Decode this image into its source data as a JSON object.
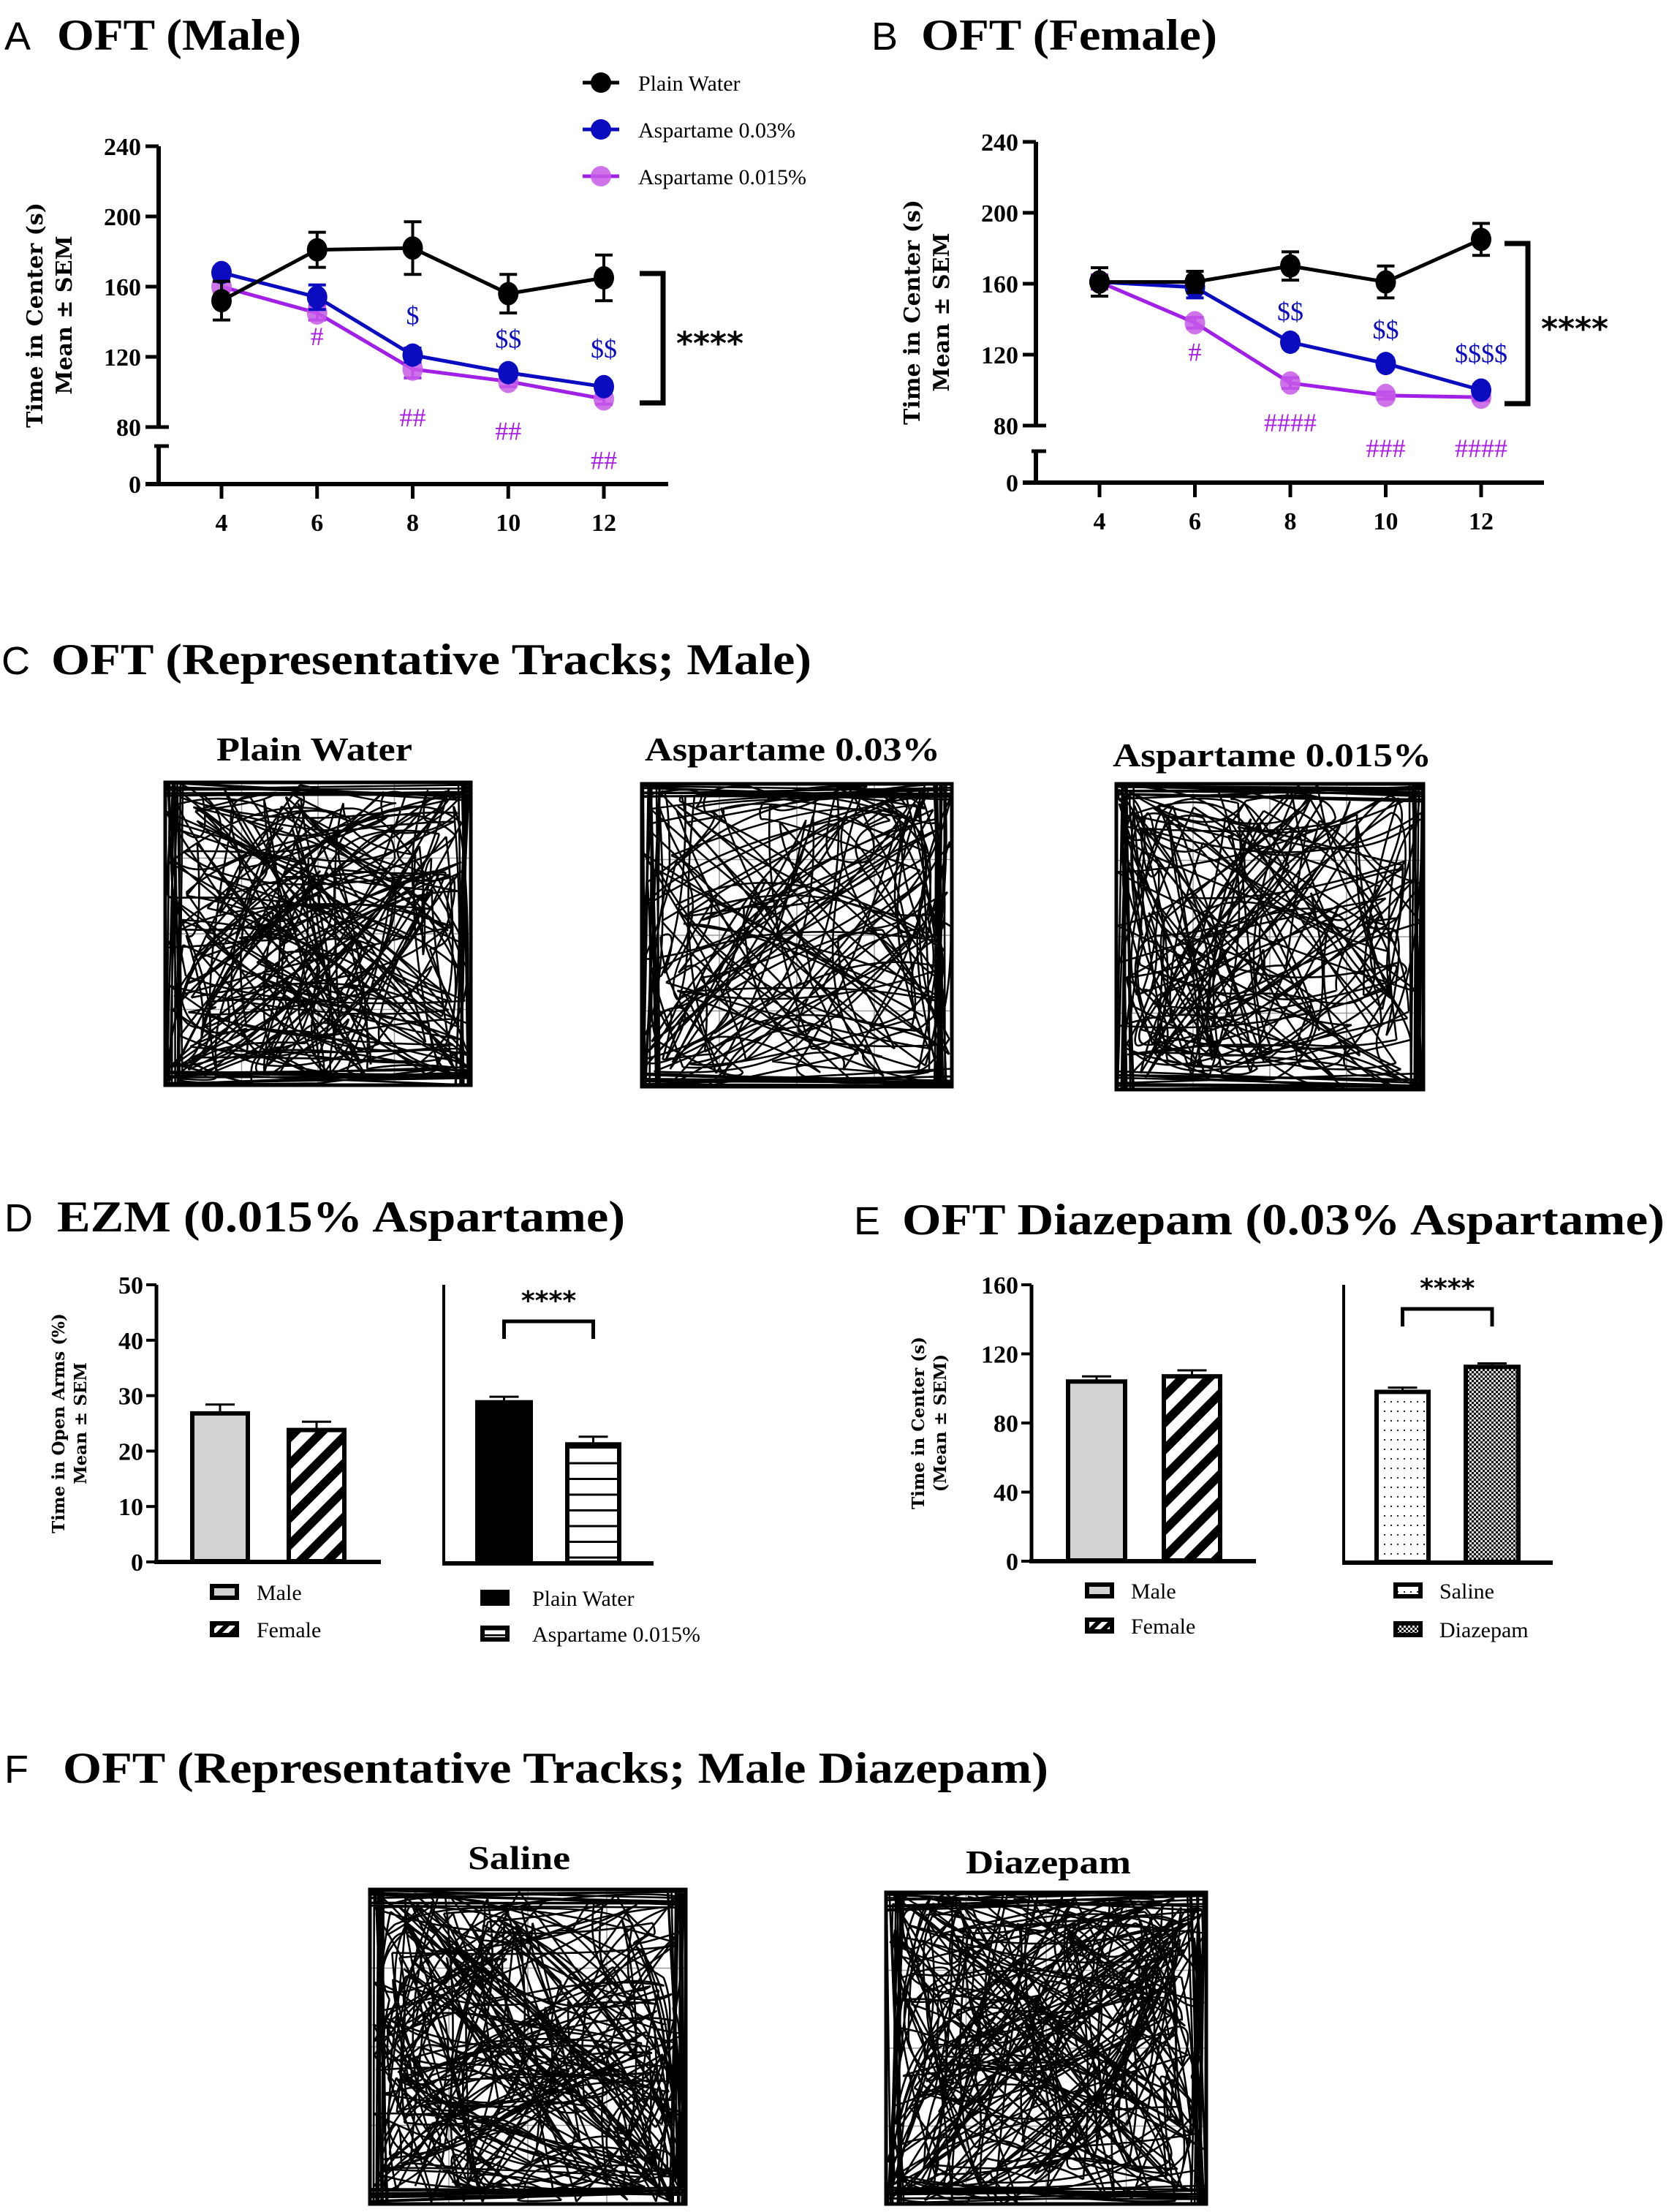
{
  "colors": {
    "plain_water": "#000000",
    "aspartame_003": "#0b0bbf",
    "aspartame_0015_line": "#a020e6",
    "aspartame_0015_marker": "#c75be8",
    "male_bar": "#d3d3d3",
    "grid": "#9a9a9a"
  },
  "panels": {
    "A": {
      "letter": "A",
      "title": "OFT (Male)"
    },
    "B": {
      "letter": "B",
      "title": "OFT (Female)"
    },
    "C": {
      "letter": "C",
      "title": "OFT (Representative Tracks; Male)",
      "tracks": [
        {
          "label": "Plain Water"
        },
        {
          "label": "Aspartame 0.03%"
        },
        {
          "label": "Aspartame 0.015%"
        }
      ]
    },
    "D": {
      "letter": "D",
      "title": "EZM (0.015% Aspartame)"
    },
    "E": {
      "letter": "E",
      "title": "OFT Diazepam (0.03% Aspartame)"
    },
    "F": {
      "letter": "F",
      "title": "OFT (Representative Tracks; Male Diazepam)",
      "tracks": [
        {
          "label": "Saline"
        },
        {
          "label": "Diazepam"
        }
      ]
    }
  },
  "legend_lines": [
    {
      "name": "Plain Water",
      "color_key": "plain_water"
    },
    {
      "name": "Aspartame 0.03%",
      "color_key": "aspartame_003"
    },
    {
      "name": "Aspartame 0.015%",
      "color_key": "aspartame_0015_line"
    }
  ],
  "chart_data": [
    {
      "id": "A",
      "type": "line",
      "title": "OFT (Male)",
      "xlabel": "",
      "ylabel": "Time in Center (s)",
      "ylabel2": "Mean ± SEM",
      "x": [
        4,
        6,
        8,
        10,
        12
      ],
      "xticks": [
        "4",
        "6",
        "8",
        "10",
        "12"
      ],
      "yticks": [
        "0",
        "80",
        "120",
        "160",
        "200",
        "240"
      ],
      "ylim": [
        0,
        240
      ],
      "axis_break": [
        0,
        80
      ],
      "series": [
        {
          "name": "Plain Water",
          "values": [
            152,
            181,
            182,
            156,
            165
          ],
          "sem": [
            11,
            10,
            15,
            11,
            13
          ]
        },
        {
          "name": "Aspartame 0.03%",
          "values": [
            168,
            154,
            121,
            111,
            103
          ],
          "sem": [
            3,
            7,
            4,
            3,
            3
          ]
        },
        {
          "name": "Aspartame 0.015%",
          "values": [
            160,
            145,
            113,
            106,
            96
          ],
          "sem": [
            3,
            4,
            5,
            3,
            3
          ]
        }
      ],
      "annotations_003": [
        "",
        "",
        "$",
        "$$",
        "$$"
      ],
      "annotations_0015": [
        "",
        "#",
        "##",
        "##",
        "##"
      ],
      "bracket_label": "****"
    },
    {
      "id": "B",
      "type": "line",
      "title": "OFT (Female)",
      "xlabel": "",
      "ylabel": "Time in Center (s)",
      "ylabel2": "Mean ± SEM",
      "x": [
        4,
        6,
        8,
        10,
        12
      ],
      "xticks": [
        "4",
        "6",
        "8",
        "10",
        "12"
      ],
      "yticks": [
        "0",
        "80",
        "120",
        "160",
        "200",
        "240"
      ],
      "ylim": [
        0,
        240
      ],
      "axis_break": [
        0,
        80
      ],
      "series": [
        {
          "name": "Plain Water",
          "values": [
            161,
            161,
            170,
            161,
            185
          ],
          "sem": [
            8,
            6,
            8,
            9,
            9
          ]
        },
        {
          "name": "Aspartame 0.03%",
          "values": [
            161,
            158,
            127,
            115,
            100
          ],
          "sem": [
            3,
            6,
            3,
            3,
            3
          ]
        },
        {
          "name": "Aspartame 0.015%",
          "values": [
            161,
            138,
            104,
            97,
            96
          ],
          "sem": [
            4,
            3,
            3,
            2,
            2
          ]
        }
      ],
      "annotations_003": [
        "",
        "",
        "$$",
        "$$",
        "$$$$"
      ],
      "annotations_0015": [
        "",
        "#",
        "####",
        "###",
        "####"
      ],
      "bracket_label": "****"
    },
    {
      "id": "D",
      "type": "bar",
      "title": "EZM (0.015% Aspartame)",
      "ylabel": "Time in Open Arms (%)",
      "ylabel2": "Mean ± SEM",
      "ylim": [
        0,
        50
      ],
      "yticks": [
        "0",
        "10",
        "20",
        "30",
        "40",
        "50"
      ],
      "groups": [
        {
          "bars": [
            {
              "name": "Male",
              "value": 26.8,
              "sem": 1.6,
              "pattern": "gray"
            },
            {
              "name": "Female",
              "value": 23.8,
              "sem": 1.5,
              "pattern": "diagonal"
            }
          ]
        },
        {
          "bars": [
            {
              "name": "Plain Water",
              "value": 28.8,
              "sem": 1.0,
              "pattern": "black"
            },
            {
              "name": "Aspartame 0.015%",
              "value": 21.2,
              "sem": 1.4,
              "pattern": "horizontal"
            }
          ],
          "bracket_label": "****"
        }
      ]
    },
    {
      "id": "E",
      "type": "bar",
      "title": "OFT Diazepam (0.03% Aspartame)",
      "ylabel": "Time in Center (s)",
      "ylabel2": "(Mean ± SEM)",
      "ylim": [
        0,
        160
      ],
      "yticks": [
        "0",
        "40",
        "80",
        "120",
        "160"
      ],
      "groups": [
        {
          "bars": [
            {
              "name": "Male",
              "value": 104,
              "sem": 3,
              "pattern": "gray"
            },
            {
              "name": "Female",
              "value": 107,
              "sem": 3.5,
              "pattern": "diagonal"
            }
          ]
        },
        {
          "bars": [
            {
              "name": "Saline",
              "value": 98,
              "sem": 2.5,
              "pattern": "dots"
            },
            {
              "name": "Diazepam",
              "value": 112.5,
              "sem": 2,
              "pattern": "checker"
            }
          ],
          "bracket_label": "****"
        }
      ]
    }
  ]
}
